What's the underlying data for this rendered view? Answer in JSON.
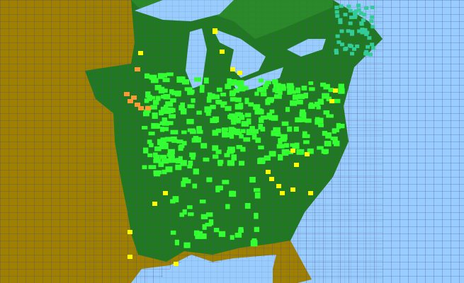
{
  "map": {
    "colors": {
      "water": "#99ccff",
      "outside_range": "#a08000",
      "main_range": "#1f7a1f",
      "light_green": "#33ff33",
      "yellow": "#ffff00",
      "orange": "#ff9933",
      "teal": "#33cc99",
      "county_lines": "#4a4a8a"
    }
  }
}
